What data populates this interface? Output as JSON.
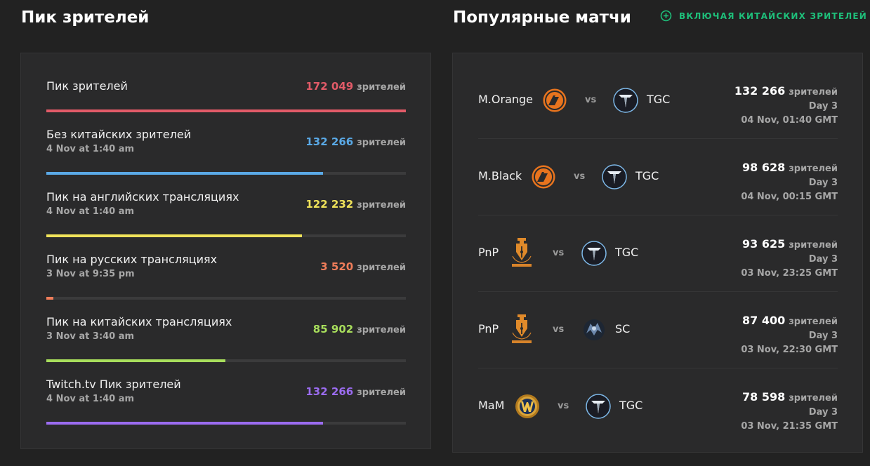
{
  "peak_section": {
    "heading": "Пик зрителей",
    "unit": "зрителей",
    "stats": [
      {
        "title": "Пик зрителей",
        "date": "",
        "value": "172 049",
        "color": "#e25b68",
        "fraction": 1.0
      },
      {
        "title": "Без китайских зрителей",
        "date": "4 Nov at 1:40 am",
        "value": "132 266",
        "color": "#5aa9e6",
        "fraction": 0.769
      },
      {
        "title": "Пик на английских трансляциях",
        "date": "4 Nov at 1:40 am",
        "value": "122 232",
        "color": "#f0e35a",
        "fraction": 0.71
      },
      {
        "title": "Пик на русских трансляциях",
        "date": "3 Nov at 9:35 pm",
        "value": "3 520",
        "color": "#f07d5a",
        "fraction": 0.02
      },
      {
        "title": "Пик на китайских трансляциях",
        "date": "3 Nov at 3:40 am",
        "value": "85 902",
        "color": "#a8de5c",
        "fraction": 0.499
      },
      {
        "title": "Twitch.tv Пик зрителей",
        "date": "4 Nov at 1:40 am",
        "value": "132 266",
        "color": "#9b6cf0",
        "fraction": 0.769
      }
    ]
  },
  "matches_section": {
    "heading": "Популярные матчи",
    "toggle_label": "ВКЛЮЧАЯ КИТАЙСКИХ ЗРИТЕЛЕЙ",
    "toggle_icon": "plus-circle-icon",
    "accent": "#1ebf7a",
    "vs_label": "vs",
    "unit": "зрителей",
    "matches": [
      {
        "team_a": "M.Orange",
        "logo_a": "mouz-logo-icon",
        "team_b": "TGC",
        "logo_b": "tgc-logo-icon",
        "viewers": "132 266",
        "day": "Day 3",
        "time": "04 Nov, 01:40 GMT"
      },
      {
        "team_a": "M.Black",
        "logo_a": "mouz-logo-icon",
        "team_b": "TGC",
        "logo_b": "tgc-logo-icon",
        "viewers": "98 628",
        "day": "Day 3",
        "time": "04 Nov, 00:15 GMT"
      },
      {
        "team_a": "PnP",
        "logo_a": "pen-and-paper-logo-icon",
        "team_b": "TGC",
        "logo_b": "tgc-logo-icon",
        "viewers": "93 625",
        "day": "Day 3",
        "time": "03 Nov, 23:25 GMT"
      },
      {
        "team_a": "PnP",
        "logo_a": "pen-and-paper-logo-icon",
        "team_b": "SC",
        "logo_b": "sc-logo-icon",
        "viewers": "87 400",
        "day": "Day 3",
        "time": "03 Nov, 22:30 GMT"
      },
      {
        "team_a": "MaM",
        "logo_a": "wow-logo-icon",
        "team_b": "TGC",
        "logo_b": "tgc-logo-icon",
        "viewers": "78 598",
        "day": "Day 3",
        "time": "03 Nov, 21:35 GMT"
      }
    ]
  }
}
